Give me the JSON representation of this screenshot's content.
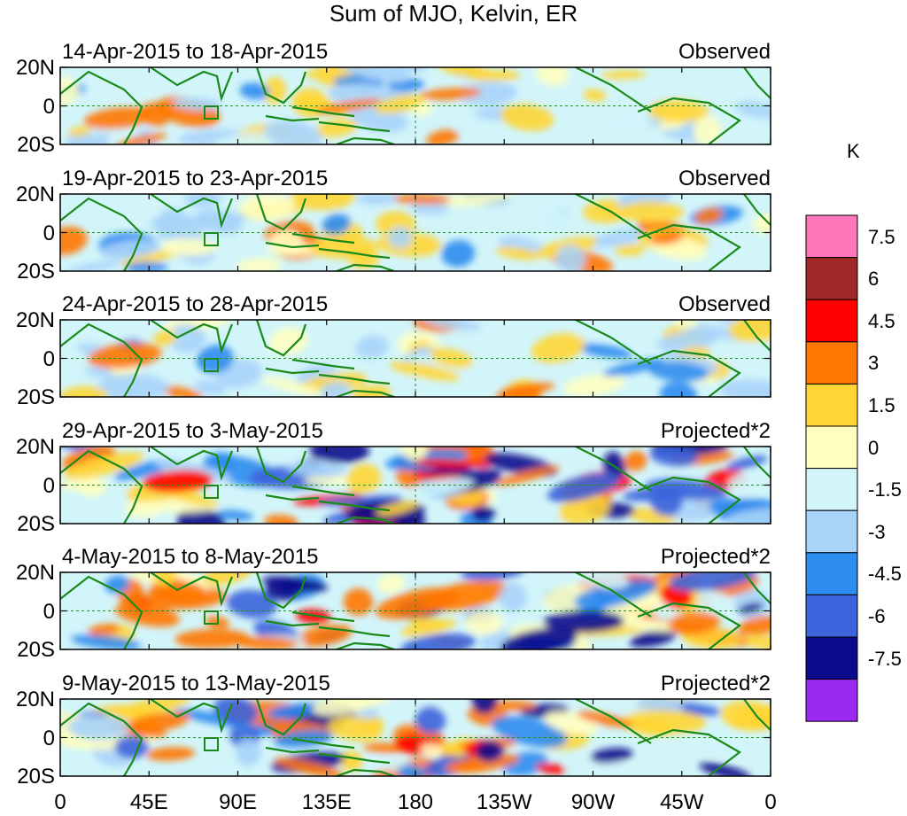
{
  "title": "Sum of MJO, Kelvin, ER",
  "colorbar": {
    "unit": "K",
    "levels": [
      "7.5",
      "6",
      "4.5",
      "3",
      "1.5",
      "0",
      "-1.5",
      "-3",
      "-4.5",
      "-6",
      "-7.5"
    ],
    "colors": [
      "#ff77bb",
      "#a02828",
      "#ff0000",
      "#ff7700",
      "#ffd633",
      "#ffffc0",
      "#d2f5fa",
      "#a8d4fa",
      "#2c8cf0",
      "#3c64dc",
      "#0a0a8c",
      "#9b2aee"
    ]
  },
  "y_ticks": [
    "20N",
    "0",
    "20S"
  ],
  "x_ticks": [
    "0",
    "45E",
    "90E",
    "135E",
    "180",
    "135W",
    "90W",
    "45W",
    "0"
  ],
  "panels": [
    {
      "dates": "14-Apr-2015 to 18-Apr-2015",
      "label": "Observed"
    },
    {
      "dates": "19-Apr-2015 to 23-Apr-2015",
      "label": "Observed"
    },
    {
      "dates": "24-Apr-2015 to 28-Apr-2015",
      "label": "Observed"
    },
    {
      "dates": "29-Apr-2015 to 3-May-2015",
      "label": "Projected*2"
    },
    {
      "dates": "4-May-2015 to 8-May-2015",
      "label": "Projected*2"
    },
    {
      "dates": "9-May-2015 to 13-May-2015",
      "label": "Projected*2"
    }
  ]
}
